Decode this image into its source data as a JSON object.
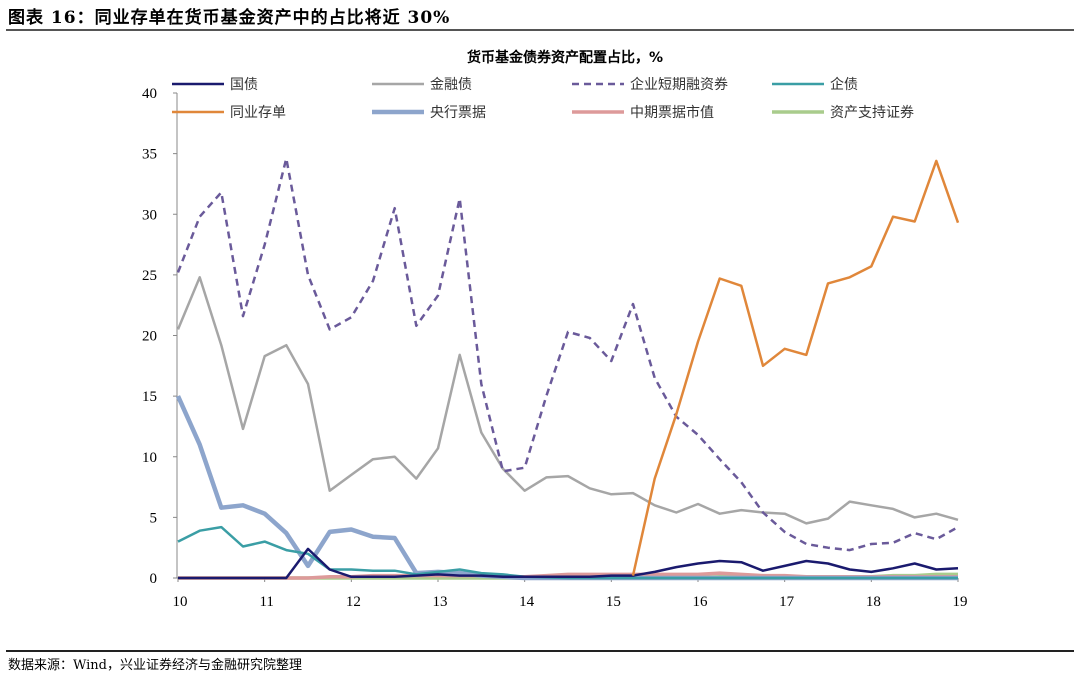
{
  "header": {
    "title": "图表 16：同业存单在货币基金资产中的占比将近 30%"
  },
  "footer": {
    "source": "数据来源：Wind，兴业证券经济与金融研究院整理"
  },
  "chart_data": {
    "type": "line",
    "title": "货币基金债券资产配置占比，%",
    "xlabel": "",
    "ylabel": "",
    "ylim": [
      0,
      40
    ],
    "yticks": [
      "0",
      "5",
      "10",
      "15",
      "20",
      "25",
      "30",
      "35",
      "40"
    ],
    "xticks": [
      "10",
      "11",
      "12",
      "13",
      "14",
      "15",
      "16",
      "17",
      "18",
      "19"
    ],
    "xlim": [
      10,
      19
    ],
    "x_step": 0.25,
    "legend_position": "top",
    "grid": false,
    "series": [
      {
        "name": "国债",
        "color": "#1a1a6e",
        "width": 2.5,
        "dash": "",
        "values": [
          0,
          0,
          0,
          0,
          0,
          0,
          2.4,
          0.7,
          0.1,
          0.1,
          0.1,
          0.2,
          0.3,
          0.2,
          0.2,
          0.1,
          0.1,
          0.1,
          0.1,
          0.1,
          0.2,
          0.2,
          0.5,
          0.9,
          1.2,
          1.4,
          1.3,
          0.6,
          1.0,
          1.4,
          1.2,
          0.7,
          0.5,
          0.8,
          1.2,
          0.7,
          0.8
        ]
      },
      {
        "name": "金融债",
        "color": "#a6a6a6",
        "width": 2.5,
        "dash": "",
        "values": [
          20.5,
          24.8,
          19.2,
          12.3,
          18.3,
          19.2,
          16.0,
          7.2,
          8.5,
          9.8,
          10.0,
          8.2,
          10.7,
          18.4,
          12.0,
          9.0,
          7.2,
          8.3,
          8.4,
          7.4,
          6.9,
          7.0,
          6.0,
          5.4,
          6.1,
          5.3,
          5.6,
          5.4,
          5.3,
          4.5,
          4.9,
          6.3,
          6.0,
          5.7,
          5.0,
          5.3,
          4.8
        ]
      },
      {
        "name": "企业短期融资券",
        "color": "#6a5a9a",
        "width": 2.5,
        "dash": "7,5",
        "values": [
          25.2,
          29.8,
          31.8,
          21.6,
          27.5,
          34.6,
          25.0,
          20.5,
          21.5,
          24.5,
          30.5,
          20.8,
          23.3,
          31.3,
          16.0,
          8.8,
          9.1,
          15.0,
          20.3,
          19.8,
          17.9,
          22.6,
          16.5,
          13.3,
          11.8,
          9.8,
          7.9,
          5.4,
          3.8,
          2.8,
          2.5,
          2.3,
          2.8,
          2.9,
          3.7,
          3.2,
          4.2
        ]
      },
      {
        "name": "企债",
        "color": "#3a9ea5",
        "width": 2.5,
        "dash": "",
        "values": [
          3.0,
          3.9,
          4.2,
          2.6,
          3.0,
          2.3,
          2.0,
          0.7,
          0.7,
          0.6,
          0.6,
          0.3,
          0.5,
          0.7,
          0.4,
          0.3,
          0.1,
          0.05,
          0,
          0,
          0,
          0,
          0,
          0,
          0,
          0,
          0,
          0,
          0,
          0,
          0,
          0,
          0,
          0,
          0,
          0,
          0
        ]
      },
      {
        "name": "同业存单",
        "color": "#e0873a",
        "width": 2.5,
        "dash": "",
        "values": [
          null,
          null,
          null,
          null,
          null,
          null,
          null,
          null,
          null,
          null,
          null,
          null,
          null,
          null,
          null,
          null,
          null,
          null,
          null,
          null,
          null,
          0.2,
          8.2,
          13.5,
          19.5,
          24.7,
          24.1,
          17.5,
          18.9,
          18.4,
          24.3,
          24.8,
          25.7,
          29.8,
          29.4,
          34.4,
          29.3
        ]
      },
      {
        "name": "央行票据",
        "color": "#8da5cc",
        "width": 4.5,
        "dash": "",
        "values": [
          15.0,
          11.0,
          5.8,
          6.0,
          5.3,
          3.7,
          1.0,
          3.8,
          4.0,
          3.4,
          3.3,
          0.4,
          0.5,
          0.4,
          0.2,
          0.1,
          0,
          0,
          0,
          0,
          0,
          0,
          0,
          0,
          0,
          0,
          0,
          0,
          0,
          0,
          0,
          0,
          0,
          0,
          0,
          0,
          0
        ]
      },
      {
        "name": "中期票据市值",
        "color": "#dd9a9a",
        "width": 3.5,
        "dash": "",
        "values": [
          0,
          0,
          0,
          0,
          0,
          0,
          0,
          0.1,
          0.1,
          0.2,
          0.2,
          0.2,
          0.2,
          0.2,
          0.2,
          0.1,
          0.1,
          0.2,
          0.3,
          0.3,
          0.3,
          0.3,
          0.3,
          0.3,
          0.3,
          0.4,
          0.3,
          0.2,
          0.2,
          0.1,
          0.1,
          0.1,
          0.1,
          0.1,
          0.1,
          0.1,
          0.1
        ]
      },
      {
        "name": "资产支持证券",
        "color": "#a9cc8c",
        "width": 3.5,
        "dash": "",
        "values": [
          0,
          0,
          0,
          0,
          0,
          0,
          0,
          0,
          0,
          0,
          0,
          0,
          0,
          0,
          0,
          0,
          0,
          0,
          0,
          0.05,
          0.05,
          0.05,
          0.05,
          0.05,
          0.05,
          0.1,
          0.1,
          0.1,
          0.1,
          0.1,
          0.1,
          0.1,
          0.1,
          0.2,
          0.2,
          0.3,
          0.3
        ]
      }
    ]
  }
}
